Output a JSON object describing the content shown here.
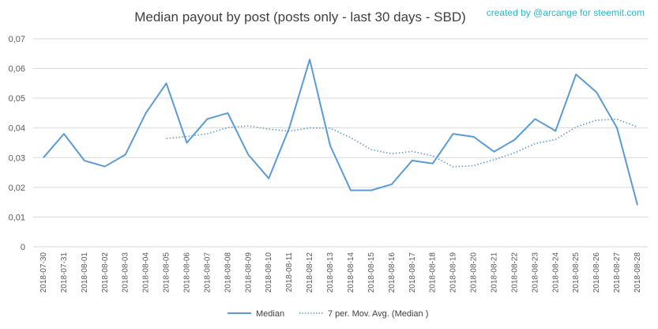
{
  "chart_data": {
    "type": "line",
    "title": "Median payout by post (posts only - last 30 days - SBD)",
    "credit": "created by @arcange for steemit.com",
    "xlabel": "",
    "ylabel": "",
    "ylim": [
      0,
      0.07
    ],
    "y_ticks": [
      "0",
      "0,01",
      "0,02",
      "0,03",
      "0,04",
      "0,05",
      "0,06",
      "0,07"
    ],
    "grid": true,
    "legend_position": "bottom",
    "categories": [
      "2018-07-30",
      "2018-07-31",
      "2018-08-01",
      "2018-08-02",
      "2018-08-03",
      "2018-08-04",
      "2018-08-05",
      "2018-08-06",
      "2018-08-07",
      "2018-08-08",
      "2018-08-09",
      "2018-08-10",
      "2018-08-11",
      "2018-08-12",
      "2018-08-13",
      "2018-08-14",
      "2018-08-15",
      "2018-08-16",
      "2018-08-17",
      "2018-08-18",
      "2018-08-19",
      "2018-08-20",
      "2018-08-21",
      "2018-08-22",
      "2018-08-23",
      "2018-08-24",
      "2018-08-25",
      "2018-08-26",
      "2018-08-27",
      "2018-08-28"
    ],
    "series": [
      {
        "name": "Median",
        "style": "solid",
        "color": "#5b9bd5",
        "values": [
          0.03,
          0.038,
          0.029,
          0.027,
          0.031,
          0.045,
          0.055,
          0.035,
          0.043,
          0.045,
          0.031,
          0.023,
          0.04,
          0.063,
          0.034,
          0.019,
          0.019,
          0.021,
          0.029,
          0.028,
          0.038,
          0.037,
          0.032,
          0.036,
          0.043,
          0.039,
          0.058,
          0.052,
          0.04,
          0.014
        ]
      },
      {
        "name": "7 per. Mov. Avg. (Median )",
        "style": "dotted",
        "color": "#5b9bd5",
        "values": [
          null,
          null,
          null,
          null,
          null,
          null,
          0.0364,
          0.0371,
          0.038,
          0.0401,
          0.0407,
          0.0396,
          0.0389,
          0.04,
          0.0399,
          0.0367,
          0.0327,
          0.0313,
          0.0321,
          0.0306,
          0.0269,
          0.0273,
          0.0293,
          0.0316,
          0.0347,
          0.0361,
          0.0403,
          0.0426,
          0.0429,
          0.0403
        ]
      }
    ]
  }
}
